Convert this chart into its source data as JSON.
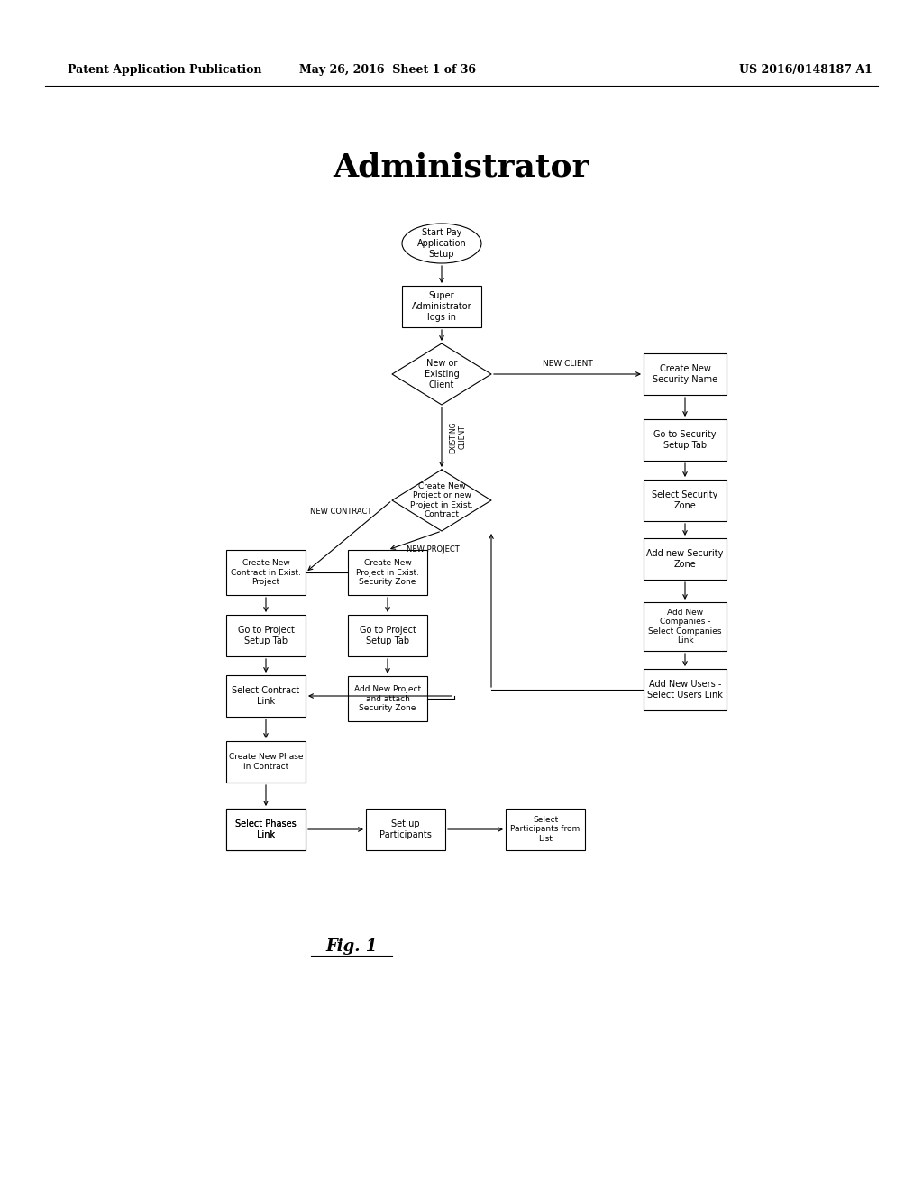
{
  "background_color": "#ffffff",
  "header_left": "Patent Application Publication",
  "header_center": "May 26, 2016  Sheet 1 of 36",
  "header_right": "US 2016/0148187 A1",
  "title": "Administrator",
  "fig_label": "Fig. 1"
}
